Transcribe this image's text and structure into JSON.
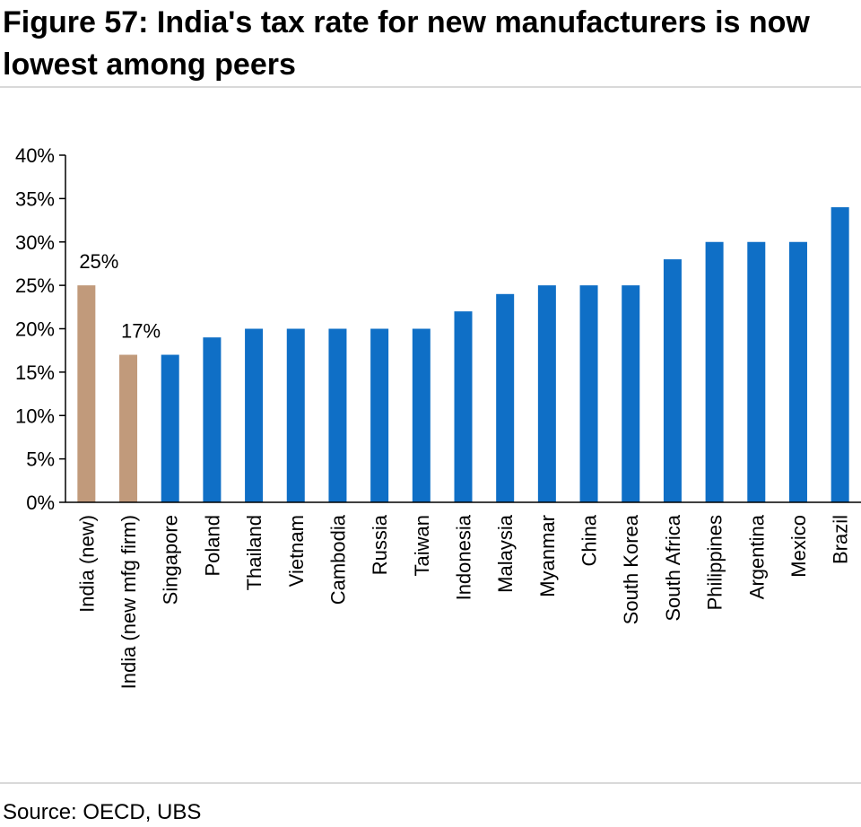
{
  "title": "Figure 57: India's tax rate for new manufacturers is now lowest among peers",
  "source": "Source: OECD, UBS",
  "colors": {
    "highlight": "#c19a7b",
    "primary": "#0f6fc6",
    "axis": "#000000",
    "rule": "#d9d9d9"
  },
  "chart_data": {
    "type": "bar",
    "categories": [
      "India (new)",
      "India (new mfg firm)",
      "Singapore",
      "Poland",
      "Thailand",
      "Vietnam",
      "Cambodia",
      "Russia",
      "Taiwan",
      "Indonesia",
      "Malaysia",
      "Myanmar",
      "China",
      "South Korea",
      "South Africa",
      "Philippines",
      "Argentina",
      "Mexico",
      "Brazil"
    ],
    "values": [
      25,
      17,
      17,
      19,
      20,
      20,
      20,
      20,
      20,
      22,
      24,
      25,
      25,
      25,
      28,
      30,
      30,
      30,
      34
    ],
    "highlighted": [
      0,
      1
    ],
    "data_labels": {
      "0": "25%",
      "1": "17%"
    },
    "yticks": [
      "0%",
      "5%",
      "10%",
      "15%",
      "20%",
      "25%",
      "30%",
      "35%",
      "40%"
    ],
    "ylim": [
      0,
      40
    ],
    "xlabel": "",
    "ylabel": "",
    "grid": false,
    "legend": "none"
  }
}
